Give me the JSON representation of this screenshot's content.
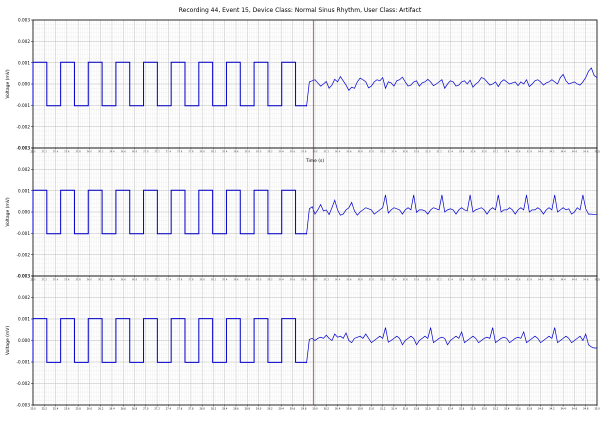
{
  "title": "Recording 44, Event 15, Device Class: Normal Sinus Rhythm, User Class: Artifact",
  "chart_data": {
    "type": "line",
    "title": "Recording 44, Event 15, Device Class: Normal Sinus Rhythm, User Class: Artifact",
    "xlabel": "Time (s)",
    "ylabel": "Voltage (mV)",
    "xlim": [
      25.0,
      35.0
    ],
    "ylim": [
      -0.003,
      0.003
    ],
    "yticks": [
      "0.003",
      "0.002",
      "0.001",
      "0.000",
      "-0.001",
      "-0.002",
      "-0.003"
    ],
    "xtick_start": 25.0,
    "xtick_step": 0.2,
    "grid": true,
    "event_marker_x": 29.97,
    "line_color": "#0000cc",
    "marker_color": "#ff0000",
    "panels": [
      {
        "name": "",
        "calibration": {
          "start": 25.0,
          "end": 29.85,
          "period": 0.49,
          "high": 0.00102,
          "low": -0.00102
        },
        "x": [
          29.85,
          29.9,
          29.95,
          30.0,
          30.05,
          30.1,
          30.15,
          30.2,
          30.25,
          30.3,
          30.35,
          30.4,
          30.45,
          30.5,
          30.55,
          30.6,
          30.65,
          30.7,
          30.75,
          30.8,
          30.85,
          30.9,
          30.95,
          31.0,
          31.05,
          31.1,
          31.15,
          31.2,
          31.25,
          31.3,
          31.35,
          31.4,
          31.45,
          31.5,
          31.55,
          31.6,
          31.65,
          31.7,
          31.75,
          31.8,
          31.85,
          31.9,
          31.95,
          32.0,
          32.05,
          32.1,
          32.15,
          32.2,
          32.25,
          32.3,
          32.35,
          32.4,
          32.45,
          32.5,
          32.55,
          32.6,
          32.65,
          32.7,
          32.75,
          32.8,
          32.85,
          32.9,
          32.95,
          33.0,
          33.05,
          33.1,
          33.15,
          33.2,
          33.25,
          33.3,
          33.35,
          33.4,
          33.45,
          33.5,
          33.55,
          33.6,
          33.65,
          33.7,
          33.75,
          33.8,
          33.85,
          33.9,
          33.95,
          34.0,
          34.05,
          34.1,
          34.15,
          34.2,
          34.25,
          34.3,
          34.35,
          34.4,
          34.45,
          34.5,
          34.55,
          34.6,
          34.65,
          34.7,
          34.75,
          34.8,
          34.85,
          34.9,
          34.95,
          35.0
        ],
        "y": [
          -0.00105,
          0.0001,
          0.00015,
          0.0002,
          5e-05,
          -0.0001,
          0.0,
          0.00012,
          -0.0002,
          -5e-05,
          0.00022,
          0.0001,
          0.00035,
          0.00015,
          -5e-05,
          -0.0003,
          -0.00015,
          -0.0002,
          0.0001,
          0.00028,
          0.0002,
          0.0001,
          -0.00018,
          -0.0001,
          0.0001,
          0.0002,
          0.00015,
          0.0003,
          -0.0002,
          0.0001,
          5e-05,
          -0.0001,
          0.00015,
          0.0002,
          0.00032,
          0.0001,
          -0.0001,
          -5e-05,
          0.0001,
          0.00015,
          -0.0001,
          5e-05,
          0.0001,
          0.00022,
          0.0001,
          -8e-05,
          0.0,
          0.0001,
          0.0002,
          -0.0002,
          0.0,
          0.00015,
          0.0001,
          -0.0001,
          -5e-05,
          0.0001,
          0.00015,
          0.0,
          0.00018,
          -0.00015,
          0.0,
          0.0001,
          0.0003,
          0.00025,
          0.0001,
          -5e-05,
          0.0,
          0.0001,
          -0.00012,
          0.0001,
          0.0002,
          0.0001,
          0.0,
          5e-05,
          0.0001,
          -8e-05,
          0.0001,
          0.0,
          0.0002,
          -0.00012,
          0.0,
          0.00015,
          0.0002,
          0.0001,
          -5e-05,
          5e-05,
          0.0001,
          0.0002,
          0.0001,
          0.0,
          0.0003,
          0.00045,
          0.00015,
          0.0,
          5e-05,
          0.0001,
          0.0,
          -5e-05,
          0.0001,
          0.0003,
          0.0006,
          0.00075,
          0.0004,
          0.0003
        ]
      },
      {
        "name": "",
        "calibration": {
          "start": 25.0,
          "end": 29.85,
          "period": 0.49,
          "high": 0.00102,
          "low": -0.00102
        },
        "x": [
          29.85,
          29.9,
          29.95,
          30.0,
          30.05,
          30.1,
          30.15,
          30.2,
          30.25,
          30.3,
          30.35,
          30.4,
          30.45,
          30.5,
          30.55,
          30.6,
          30.65,
          30.7,
          30.75,
          30.8,
          30.85,
          30.9,
          30.95,
          31.0,
          31.05,
          31.1,
          31.15,
          31.2,
          31.25,
          31.3,
          31.35,
          31.4,
          31.45,
          31.5,
          31.55,
          31.6,
          31.65,
          31.7,
          31.75,
          31.8,
          31.85,
          31.9,
          31.95,
          32.0,
          32.05,
          32.1,
          32.15,
          32.2,
          32.25,
          32.3,
          32.35,
          32.4,
          32.45,
          32.5,
          32.55,
          32.6,
          32.65,
          32.7,
          32.75,
          32.8,
          32.85,
          32.9,
          32.95,
          33.0,
          33.05,
          33.1,
          33.15,
          33.2,
          33.25,
          33.3,
          33.35,
          33.4,
          33.45,
          33.5,
          33.55,
          33.6,
          33.65,
          33.7,
          33.75,
          33.8,
          33.85,
          33.9,
          33.95,
          34.0,
          34.05,
          34.1,
          34.15,
          34.2,
          34.25,
          34.3,
          34.35,
          34.4,
          34.45,
          34.5,
          34.55,
          34.6,
          34.65,
          34.7,
          34.75,
          34.8,
          34.85,
          34.9,
          34.95,
          35.0
        ],
        "y": [
          -0.00105,
          0.00015,
          0.00025,
          -0.0001,
          0.0001,
          0.00035,
          5e-05,
          0.0001,
          -0.00012,
          0.0002,
          0.00055,
          0.0001,
          -0.00015,
          -0.0001,
          0.0001,
          0.0002,
          0.00045,
          5e-05,
          -0.00015,
          0.0,
          0.0001,
          0.0002,
          0.00015,
          0.0001,
          -0.0001,
          0.0,
          0.0001,
          0.0002,
          0.0008,
          -5e-05,
          0.0001,
          0.0002,
          0.00015,
          0.0001,
          -0.0001,
          0.0001,
          0.0002,
          0.0001,
          0.0008,
          -2e-05,
          0.0001,
          0.0001,
          5e-05,
          -0.0001,
          0.0001,
          0.0002,
          0.00015,
          0.0001,
          0.0008,
          0.0,
          0.0001,
          0.00015,
          0.0001,
          -0.0001,
          0.0001,
          0.0002,
          0.0001,
          5e-05,
          0.0008,
          0.0,
          0.0001,
          0.00015,
          0.0002,
          0.0001,
          -0.0001,
          0.0001,
          0.0002,
          0.0001,
          0.0008,
          0.0,
          0.0001,
          0.0001,
          0.0002,
          0.0001,
          -0.0001,
          0.0001,
          0.0002,
          0.0001,
          0.0008,
          0.0,
          0.0001,
          0.0001,
          0.0002,
          0.0001,
          -0.0001,
          0.0001,
          0.0002,
          0.0001,
          0.0008,
          0.0,
          0.0001,
          0.0002,
          0.0001,
          0.00015,
          -0.0001,
          0.0,
          0.0002,
          0.0001,
          0.0008,
          0.00015,
          -0.0001,
          -0.0001,
          -0.00012,
          -0.00012
        ]
      },
      {
        "name": "",
        "calibration": {
          "start": 25.0,
          "end": 29.85,
          "period": 0.49,
          "high": 0.00102,
          "low": -0.00102
        },
        "x": [
          29.85,
          29.9,
          29.95,
          30.0,
          30.05,
          30.1,
          30.15,
          30.2,
          30.25,
          30.3,
          30.35,
          30.4,
          30.45,
          30.5,
          30.55,
          30.6,
          30.65,
          30.7,
          30.75,
          30.8,
          30.85,
          30.9,
          30.95,
          31.0,
          31.05,
          31.1,
          31.15,
          31.2,
          31.25,
          31.3,
          31.35,
          31.4,
          31.45,
          31.5,
          31.55,
          31.6,
          31.65,
          31.7,
          31.75,
          31.8,
          31.85,
          31.9,
          31.95,
          32.0,
          32.05,
          32.1,
          32.15,
          32.2,
          32.25,
          32.3,
          32.35,
          32.4,
          32.45,
          32.5,
          32.55,
          32.6,
          32.65,
          32.7,
          32.75,
          32.8,
          32.85,
          32.9,
          32.95,
          33.0,
          33.05,
          33.1,
          33.15,
          33.2,
          33.25,
          33.3,
          33.35,
          33.4,
          33.45,
          33.5,
          33.55,
          33.6,
          33.65,
          33.7,
          33.75,
          33.8,
          33.85,
          33.9,
          33.95,
          34.0,
          34.05,
          34.1,
          34.15,
          34.2,
          34.25,
          34.3,
          34.35,
          34.4,
          34.45,
          34.5,
          34.55,
          34.6,
          34.65,
          34.7,
          34.75,
          34.8,
          34.85,
          34.9,
          34.95,
          35.0
        ],
        "y": [
          -0.00105,
          5e-05,
          0.0001,
          0.0,
          0.0001,
          0.00015,
          0.0001,
          0.00025,
          0.0001,
          0.0,
          0.0003,
          0.00015,
          0.0002,
          0.0001,
          0.00035,
          0.0,
          -0.0001,
          0.0001,
          0.00015,
          0.0002,
          0.0001,
          0.0003,
          0.0001,
          -0.0001,
          0.0,
          0.0001,
          0.0002,
          0.0001,
          0.0006,
          -8e-05,
          0.0,
          0.0001,
          0.0002,
          0.0001,
          -0.0002,
          0.0,
          0.0001,
          0.0002,
          0.0001,
          -0.0002,
          0.0,
          0.0001,
          0.0002,
          0.0001,
          0.0006,
          -0.0001,
          0.0,
          0.0001,
          0.00015,
          0.0001,
          -0.0002,
          0.0,
          0.0001,
          0.0002,
          0.0001,
          0.0004,
          -0.0001,
          0.0,
          0.0001,
          0.0002,
          0.0001,
          -0.0001,
          0.0,
          0.0001,
          0.00015,
          0.0001,
          0.0006,
          -0.0001,
          0.0,
          0.0001,
          0.00015,
          0.0001,
          -0.0001,
          0.0,
          0.0001,
          0.00015,
          0.0001,
          0.0004,
          -0.0001,
          0.0,
          0.0001,
          0.0002,
          0.0001,
          -0.0001,
          0.0,
          0.0001,
          0.0002,
          0.0001,
          0.0006,
          -0.0001,
          0.0,
          0.0001,
          0.0002,
          0.0001,
          -0.0001,
          0.0,
          0.0001,
          0.0002,
          0.0,
          0.0003,
          -0.0002,
          -0.0003,
          -0.00035,
          -0.00035
        ]
      }
    ]
  }
}
